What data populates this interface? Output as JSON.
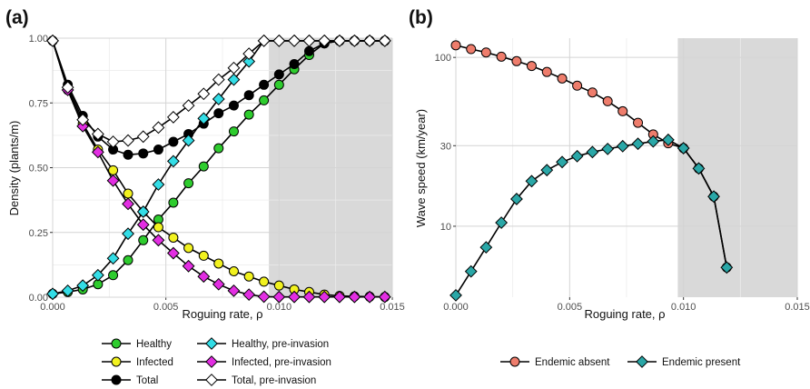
{
  "colors": {
    "healthy": "#2ecc2e",
    "infected": "#f2f21f",
    "total": "#000000",
    "healthy_pre": "#33dde6",
    "infected_pre": "#e22ee2",
    "total_pre": "#ffffff",
    "endemic_absent": "#ee7d6c",
    "endemic_present": "#2aa7a7",
    "shade": "#d9d9d9",
    "grid_major": "#d4d4d4",
    "grid_minor": "#ececec"
  },
  "chart_data": [
    {
      "panel_label": "(a)",
      "type": "line",
      "xlabel": "Roguing rate, ρ",
      "ylabel": "Density (plants/m)",
      "xlim": [
        0,
        0.015
      ],
      "ylim": [
        0,
        1
      ],
      "x_ticks": [
        0,
        0.005,
        0.01,
        0.015
      ],
      "x_tick_labels": [
        "0.000",
        "0.005",
        "0.010",
        "0.015"
      ],
      "y_ticks": [
        0,
        0.25,
        0.5,
        0.75,
        1
      ],
      "y_tick_labels": [
        "0.00",
        "0.25",
        "0.50",
        "0.75",
        "1.00"
      ],
      "shaded_x_from": 0.00955,
      "grid": true,
      "legend_position": "bottom",
      "series": [
        {
          "name": "Healthy",
          "color_key": "healthy",
          "marker": "circle",
          "x": [
            0,
            0.000667,
            0.00133,
            0.002,
            0.00267,
            0.00333,
            0.004,
            0.00467,
            0.00533,
            0.006,
            0.00667,
            0.00733,
            0.008,
            0.00867,
            0.00933,
            0.01,
            0.01067,
            0.01133,
            0.012,
            0.01267,
            0.01333,
            0.014,
            0.01467
          ],
          "y": [
            0.013,
            0.02,
            0.03,
            0.05,
            0.085,
            0.143,
            0.22,
            0.3,
            0.365,
            0.44,
            0.505,
            0.575,
            0.64,
            0.705,
            0.76,
            0.82,
            0.88,
            0.935,
            0.98,
            0.99,
            0.99,
            0.99,
            0.99
          ]
        },
        {
          "name": "Infected",
          "color_key": "infected",
          "marker": "circle",
          "x": [
            0,
            0.000667,
            0.00133,
            0.002,
            0.00267,
            0.00333,
            0.004,
            0.00467,
            0.00533,
            0.006,
            0.00667,
            0.00733,
            0.008,
            0.00867,
            0.00933,
            0.01,
            0.01067,
            0.01133,
            0.012,
            0.01267,
            0.01333,
            0.014,
            0.01467
          ],
          "y": [
            0.99,
            0.8,
            0.67,
            0.57,
            0.49,
            0.4,
            0.33,
            0.27,
            0.23,
            0.19,
            0.16,
            0.13,
            0.1,
            0.08,
            0.06,
            0.045,
            0.03,
            0.02,
            0.01,
            0.005,
            0.003,
            0.002,
            0.001
          ]
        },
        {
          "name": "Total",
          "color_key": "total",
          "marker": "circle",
          "x": [
            0,
            0.000667,
            0.00133,
            0.002,
            0.00267,
            0.00333,
            0.004,
            0.00467,
            0.00533,
            0.006,
            0.00667,
            0.00733,
            0.008,
            0.00867,
            0.00933,
            0.01,
            0.01067,
            0.01133,
            0.012,
            0.01267,
            0.01333,
            0.014,
            0.01467
          ],
          "y": [
            0.99,
            0.82,
            0.7,
            0.62,
            0.57,
            0.55,
            0.555,
            0.57,
            0.6,
            0.63,
            0.67,
            0.71,
            0.74,
            0.78,
            0.82,
            0.86,
            0.9,
            0.95,
            0.98,
            0.99,
            0.99,
            0.99,
            0.99
          ]
        },
        {
          "name": "Healthy, pre-invasion",
          "color_key": "healthy_pre",
          "marker": "diamond",
          "x": [
            0,
            0.000667,
            0.00133,
            0.002,
            0.00267,
            0.00333,
            0.004,
            0.00467,
            0.00533,
            0.006,
            0.00667,
            0.00733,
            0.008,
            0.00867,
            0.00933,
            0.01,
            0.01067,
            0.01133,
            0.012,
            0.01267,
            0.01333,
            0.014,
            0.01467
          ],
          "y": [
            0.013,
            0.025,
            0.045,
            0.085,
            0.15,
            0.245,
            0.33,
            0.435,
            0.525,
            0.605,
            0.69,
            0.765,
            0.84,
            0.91,
            0.99,
            0.99,
            0.99,
            0.99,
            0.99,
            0.99,
            0.99,
            0.99,
            0.99
          ]
        },
        {
          "name": "Infected, pre-invasion",
          "color_key": "infected_pre",
          "marker": "diamond",
          "x": [
            0,
            0.000667,
            0.00133,
            0.002,
            0.00267,
            0.00333,
            0.004,
            0.00467,
            0.00533,
            0.006,
            0.00667,
            0.00733,
            0.008,
            0.00867,
            0.00933,
            0.01,
            0.01067,
            0.01133,
            0.012,
            0.01267,
            0.01333,
            0.014,
            0.01467
          ],
          "y": [
            0.99,
            0.8,
            0.66,
            0.56,
            0.45,
            0.36,
            0.28,
            0.22,
            0.17,
            0.12,
            0.08,
            0.05,
            0.025,
            0.01,
            0.002,
            0.001,
            0.001,
            0.001,
            0.001,
            0.001,
            0.001,
            0.001,
            0.001
          ]
        },
        {
          "name": "Total, pre-invasion",
          "color_key": "total_pre",
          "marker": "diamond",
          "x": [
            0,
            0.000667,
            0.00133,
            0.002,
            0.00267,
            0.00333,
            0.004,
            0.00467,
            0.00533,
            0.006,
            0.00667,
            0.00733,
            0.008,
            0.00867,
            0.00933,
            0.01,
            0.01067,
            0.01133,
            0.012,
            0.01267,
            0.01333,
            0.014,
            0.01467
          ],
          "y": [
            0.99,
            0.81,
            0.685,
            0.63,
            0.6,
            0.605,
            0.62,
            0.655,
            0.695,
            0.74,
            0.785,
            0.84,
            0.885,
            0.94,
            0.99,
            0.99,
            0.99,
            0.99,
            0.99,
            0.99,
            0.99,
            0.99,
            0.99
          ]
        }
      ]
    },
    {
      "panel_label": "(b)",
      "type": "line",
      "xlabel": "Roguing rate, ρ",
      "ylabel": "Wave speed (km/year)",
      "xlim": [
        0,
        0.015
      ],
      "ylim": [
        3.8,
        130
      ],
      "y_scale": "log",
      "x_ticks": [
        0,
        0.005,
        0.01,
        0.015
      ],
      "x_tick_labels": [
        "0.000",
        "0.005",
        "0.010",
        "0.015"
      ],
      "y_ticks": [
        10,
        30,
        100
      ],
      "y_tick_labels": [
        "10",
        "30",
        "100"
      ],
      "shaded_x_from": 0.00975,
      "grid": true,
      "legend_position": "bottom",
      "series": [
        {
          "name": "Endemic absent",
          "color_key": "endemic_absent",
          "marker": "circle",
          "x": [
            0,
            0.000667,
            0.00133,
            0.002,
            0.00267,
            0.00333,
            0.004,
            0.00467,
            0.00533,
            0.006,
            0.00667,
            0.00733,
            0.008,
            0.00867,
            0.00933,
            0.01,
            0.01067,
            0.01133,
            0.0119
          ],
          "y": [
            118,
            112,
            107,
            101,
            95,
            89,
            82,
            75,
            68,
            62,
            55,
            48,
            41,
            35,
            31,
            29,
            22,
            15,
            5.7
          ]
        },
        {
          "name": "Endemic present",
          "color_key": "endemic_present",
          "marker": "diamond",
          "x": [
            0,
            0.000667,
            0.00133,
            0.002,
            0.00267,
            0.00333,
            0.004,
            0.00467,
            0.00533,
            0.006,
            0.00667,
            0.00733,
            0.008,
            0.00867,
            0.00933,
            0.01,
            0.01067,
            0.01133,
            0.0119
          ],
          "y": [
            3.9,
            5.4,
            7.5,
            10.5,
            14.5,
            18.5,
            21.5,
            24.0,
            26.0,
            27.5,
            28.7,
            29.8,
            30.8,
            31.8,
            32.5,
            29,
            22,
            15,
            5.7
          ]
        }
      ]
    }
  ],
  "legends": {
    "a": [
      {
        "label": "Healthy",
        "color_key": "healthy",
        "marker": "circle"
      },
      {
        "label": "Healthy, pre-invasion",
        "color_key": "healthy_pre",
        "marker": "diamond"
      },
      {
        "label": "Infected",
        "color_key": "infected",
        "marker": "circle"
      },
      {
        "label": "Infected, pre-invasion",
        "color_key": "infected_pre",
        "marker": "diamond"
      },
      {
        "label": "Total",
        "color_key": "total",
        "marker": "circle"
      },
      {
        "label": "Total, pre-invasion",
        "color_key": "total_pre",
        "marker": "diamond"
      }
    ],
    "b": [
      {
        "label": "Endemic absent",
        "color_key": "endemic_absent",
        "marker": "circle"
      },
      {
        "label": "Endemic present",
        "color_key": "endemic_present",
        "marker": "diamond"
      }
    ]
  }
}
